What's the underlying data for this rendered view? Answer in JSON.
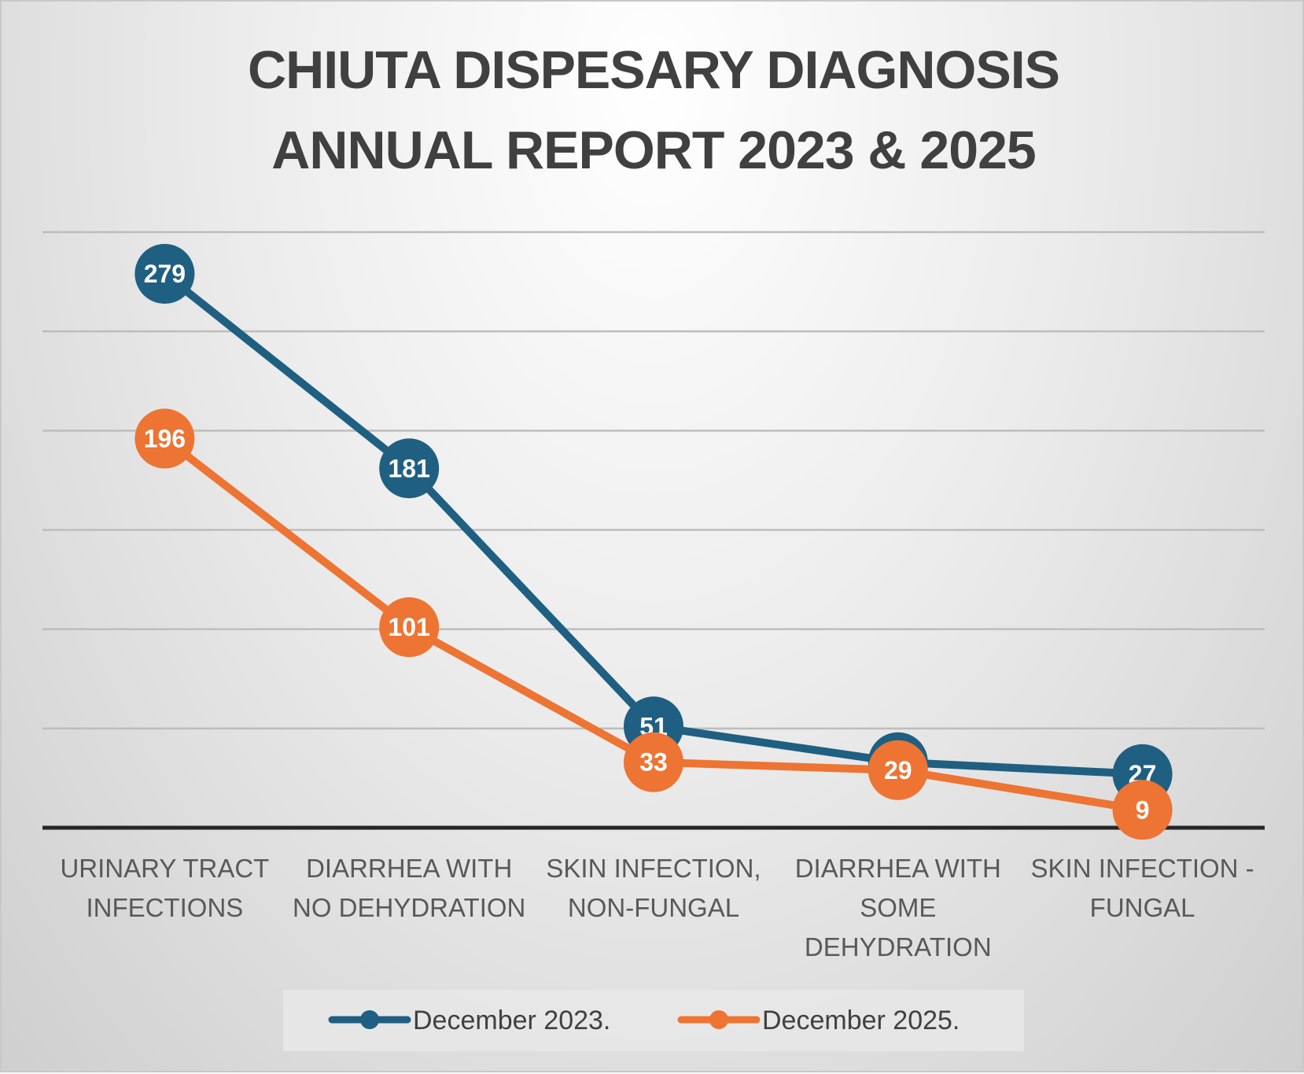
{
  "chart_data": {
    "type": "line",
    "title": [
      "CHIUTA DISPESARY DIAGNOSIS",
      "ANNUAL REPORT 2023 & 2025"
    ],
    "categories": [
      [
        "URINARY TRACT",
        "INFECTIONS"
      ],
      [
        "DIARRHEA WITH",
        "NO DEHYDRATION"
      ],
      [
        "SKIN INFECTION,",
        "NON-FUNGAL"
      ],
      [
        "DIARRHEA WITH",
        "SOME",
        "DEHYDRATION"
      ],
      [
        "SKIN INFECTION -",
        "FUNGAL"
      ]
    ],
    "series": [
      {
        "name": "December 2023.",
        "color": "#1f5f82",
        "values": [
          279,
          181,
          51,
          33,
          27
        ]
      },
      {
        "name": "December 2025.",
        "color": "#ed7433",
        "values": [
          196,
          101,
          33,
          29,
          9
        ]
      }
    ],
    "ylim": [
      0,
      300
    ],
    "y_gridline_step": 50,
    "grid": true,
    "legend": "bottom-center",
    "xlabel": "",
    "ylabel": ""
  }
}
